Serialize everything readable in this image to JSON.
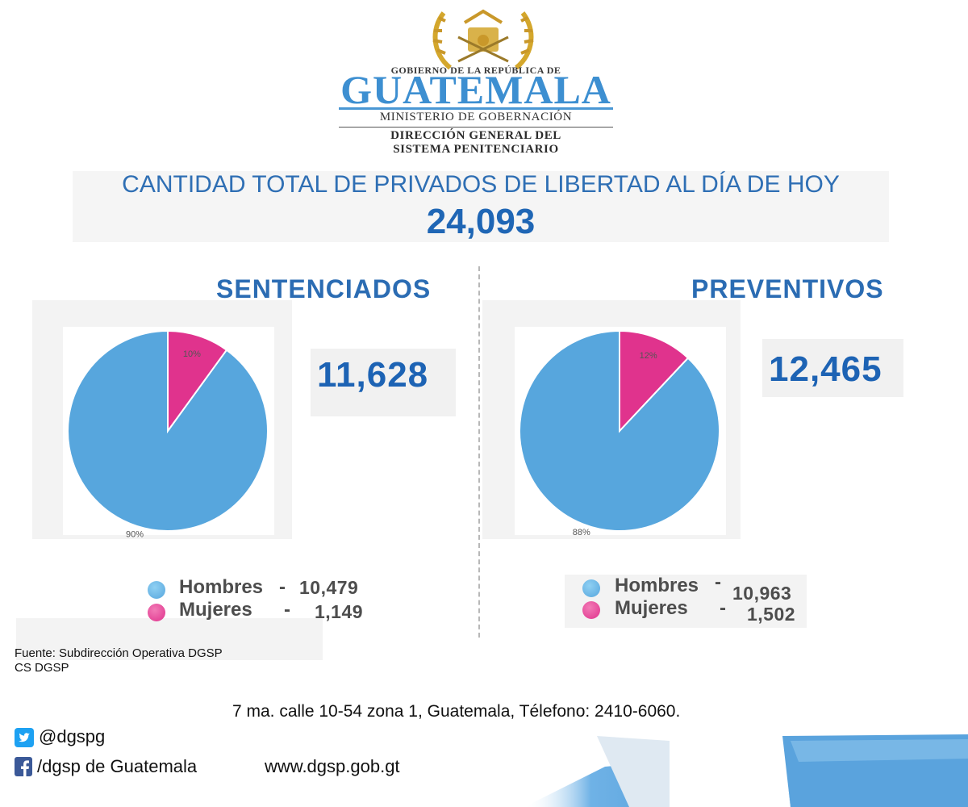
{
  "header": {
    "gov_line": "GOBIERNO DE LA REPÚBLICA DE",
    "country": "GUATEMALA",
    "ministry": "MINISTERIO DE GOBERNACIÓN",
    "direction_line1": "DIRECCIÓN GENERAL DEL",
    "direction_line2": "SISTEMA PENITENCIARIO"
  },
  "summary": {
    "title": "CANTIDAD TOTAL DE PRIVADOS DE LIBERTAD AL DÍA DE HOY",
    "total": "24,093"
  },
  "sentenciados": {
    "title": "SENTENCIADOS",
    "count": "11,628",
    "legend": [
      {
        "label": "Hombres",
        "dash": "-",
        "value": "10,479"
      },
      {
        "label": "Mujeres",
        "dash": "-",
        "value": "1,149"
      }
    ]
  },
  "preventivos": {
    "title": "PREVENTIVOS",
    "count": "12,465",
    "legend": [
      {
        "label": "Hombres",
        "dash": "-",
        "value": "10,963"
      },
      {
        "label": "Mujeres",
        "dash": "-",
        "value": "1,502"
      }
    ]
  },
  "footer": {
    "source": "Fuente: Subdirección Operativa DGSP",
    "cs": "CS DGSP",
    "address": "7 ma. calle 10-54 zona 1, Guatemala, Télefono: 2410-6060.",
    "twitter": "@dgspg",
    "facebook": "/dgsp de Guatemala",
    "website": "www.dgsp.gob.gt"
  },
  "colors": {
    "men": "#57a6dd",
    "women": "#e0338d",
    "brand_blue": "#1d63b4"
  },
  "chart_data": [
    {
      "type": "pie",
      "title": "SENTENCIADOS",
      "categories": [
        "Hombres",
        "Mujeres"
      ],
      "values": [
        90,
        10
      ],
      "labels": [
        "90%",
        "10%"
      ],
      "counts": [
        10479,
        1149
      ],
      "colors": [
        "#57a6dd",
        "#e0338d"
      ]
    },
    {
      "type": "pie",
      "title": "PREVENTIVOS",
      "categories": [
        "Hombres",
        "Mujeres"
      ],
      "values": [
        88,
        12
      ],
      "labels": [
        "88%",
        "12%"
      ],
      "counts": [
        10963,
        1502
      ],
      "colors": [
        "#57a6dd",
        "#e0338d"
      ]
    }
  ]
}
